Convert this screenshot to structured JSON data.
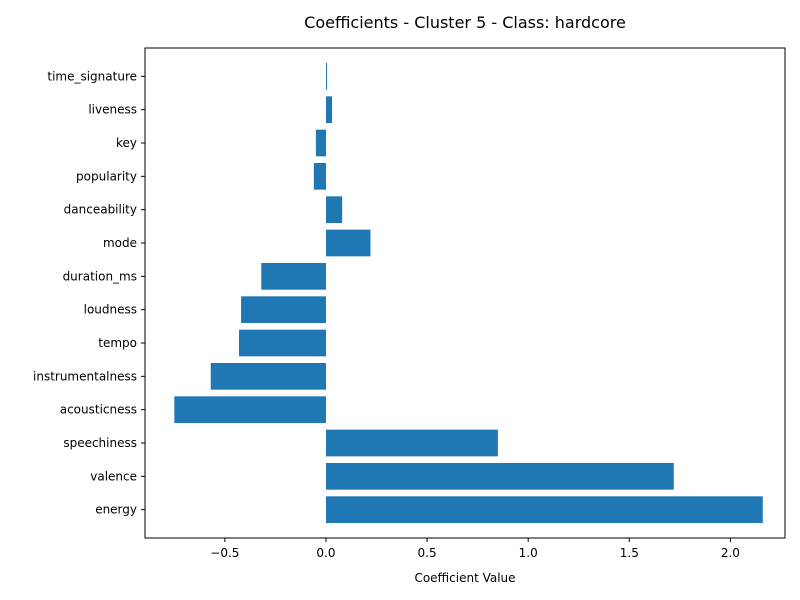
{
  "chart_data": {
    "type": "bar",
    "orientation": "horizontal",
    "title": "Coefficients - Cluster 5 - Class: hardcore",
    "xlabel": "Coefficient Value",
    "ylabel": "",
    "xlim": [
      -0.895,
      2.27
    ],
    "grid": false,
    "bar_color": "#1f77b4",
    "xticks": [
      -0.5,
      0.0,
      0.5,
      1.0,
      1.5,
      2.0
    ],
    "xtick_labels": [
      "−0.5",
      "0.0",
      "0.5",
      "1.0",
      "1.5",
      "2.0"
    ],
    "categories": [
      "energy",
      "valence",
      "speechiness",
      "acousticness",
      "instrumentalness",
      "tempo",
      "loudness",
      "duration_ms",
      "mode",
      "danceability",
      "popularity",
      "key",
      "liveness",
      "time_signature"
    ],
    "values": [
      2.16,
      1.72,
      0.85,
      -0.75,
      -0.57,
      -0.43,
      -0.42,
      -0.32,
      0.22,
      0.08,
      -0.06,
      -0.05,
      0.03,
      0.005
    ]
  }
}
